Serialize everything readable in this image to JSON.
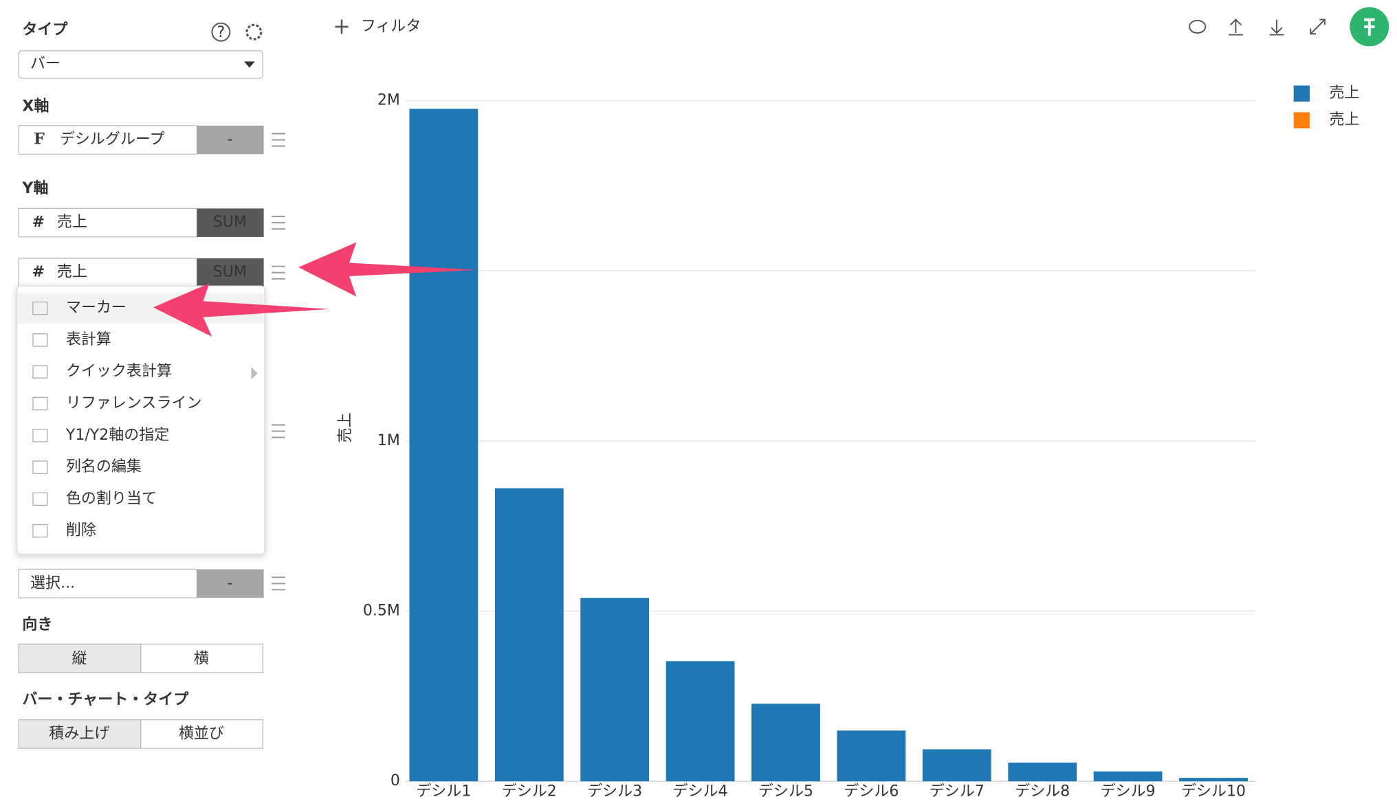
{
  "toolbar": {
    "filter": "フィルタ"
  },
  "sidebar": {
    "type_label": "タイプ",
    "help_icon": "?",
    "type_value": "バー",
    "x_axis_label": "X軸",
    "x_field_icon": "F",
    "x_field": "デシルグループ",
    "x_agg": "-",
    "y_axis_label": "Y軸",
    "y_field_icon": "#",
    "y_fields": [
      {
        "name": "売上",
        "agg": "SUM"
      },
      {
        "name": "売上",
        "agg": "SUM"
      }
    ],
    "menu": [
      "マーカー",
      "表計算",
      "クイック表計算",
      "リファレンスライン",
      "Y1/Y2軸の指定",
      "列名の編集",
      "色の割り当て",
      "削除"
    ],
    "repeat_field": "選択...",
    "repeat_agg": "-",
    "orientation_label": "向き",
    "orientation_options": [
      "縦",
      "横"
    ],
    "bar_type_label": "バー・チャート・タイプ",
    "bar_type_options": [
      "積み上げ",
      "横並び"
    ]
  },
  "chart_data": {
    "type": "bar",
    "y_label": "売上",
    "categories": [
      "デシル1",
      "デシル2",
      "デシル3",
      "デシル4",
      "デシル5",
      "デシル6",
      "デシル7",
      "デシル8",
      "デシル9",
      "デシル10"
    ],
    "series": [
      {
        "name": "売上",
        "color": "#1f77b4",
        "values": [
          1976000,
          861000,
          539000,
          353000,
          228000,
          149000,
          94000,
          55000,
          29000,
          10000
        ]
      },
      {
        "name": "売上",
        "color": "#ff7f0e",
        "values": [
          null,
          null,
          null,
          null,
          null,
          null,
          null,
          null,
          null,
          null
        ]
      }
    ],
    "ylim": [
      0,
      2000000
    ],
    "yticks": [
      0,
      {
        "value": 500000,
        "label": "0.5M"
      },
      {
        "value": 1000000,
        "label": "1M"
      },
      {
        "value": 1500000,
        "label": null
      },
      {
        "value": 2000000,
        "label": "2M"
      }
    ],
    "grid": true,
    "stacked": true,
    "legend": "top-right"
  }
}
